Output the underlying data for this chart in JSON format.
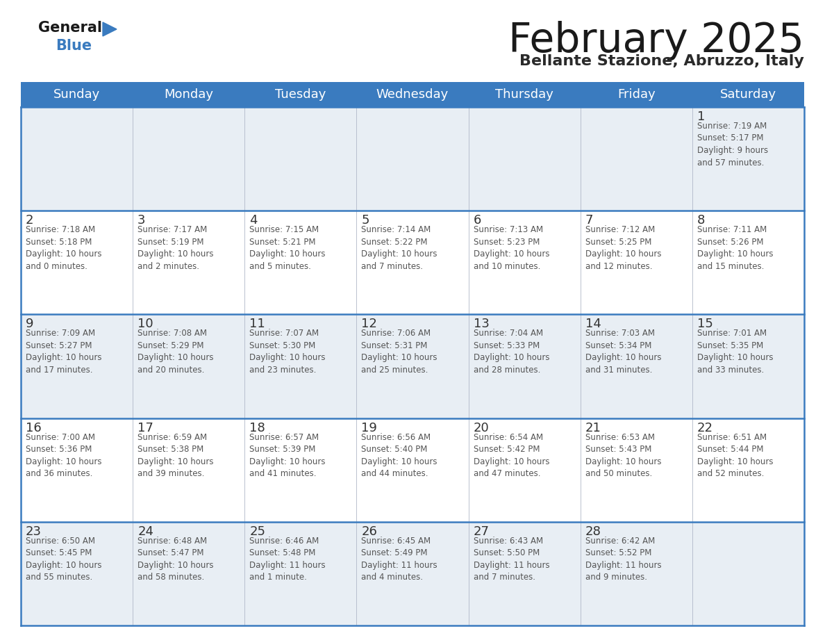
{
  "title": "February 2025",
  "subtitle": "Bellante Stazione, Abruzzo, Italy",
  "header_bg": "#3a7bbf",
  "header_text": "#ffffff",
  "day_names": [
    "Sunday",
    "Monday",
    "Tuesday",
    "Wednesday",
    "Thursday",
    "Friday",
    "Saturday"
  ],
  "row_bg_light": "#e8eef4",
  "row_bg_white": "#ffffff",
  "cell_border_color": "#3a7bbf",
  "cell_divider_color": "#b0b8c8",
  "day_number_color": "#333333",
  "info_text_color": "#555555",
  "background": "#ffffff",
  "calendar_data": [
    [
      {
        "day": "",
        "info": ""
      },
      {
        "day": "",
        "info": ""
      },
      {
        "day": "",
        "info": ""
      },
      {
        "day": "",
        "info": ""
      },
      {
        "day": "",
        "info": ""
      },
      {
        "day": "",
        "info": ""
      },
      {
        "day": "1",
        "info": "Sunrise: 7:19 AM\nSunset: 5:17 PM\nDaylight: 9 hours\nand 57 minutes."
      }
    ],
    [
      {
        "day": "2",
        "info": "Sunrise: 7:18 AM\nSunset: 5:18 PM\nDaylight: 10 hours\nand 0 minutes."
      },
      {
        "day": "3",
        "info": "Sunrise: 7:17 AM\nSunset: 5:19 PM\nDaylight: 10 hours\nand 2 minutes."
      },
      {
        "day": "4",
        "info": "Sunrise: 7:15 AM\nSunset: 5:21 PM\nDaylight: 10 hours\nand 5 minutes."
      },
      {
        "day": "5",
        "info": "Sunrise: 7:14 AM\nSunset: 5:22 PM\nDaylight: 10 hours\nand 7 minutes."
      },
      {
        "day": "6",
        "info": "Sunrise: 7:13 AM\nSunset: 5:23 PM\nDaylight: 10 hours\nand 10 minutes."
      },
      {
        "day": "7",
        "info": "Sunrise: 7:12 AM\nSunset: 5:25 PM\nDaylight: 10 hours\nand 12 minutes."
      },
      {
        "day": "8",
        "info": "Sunrise: 7:11 AM\nSunset: 5:26 PM\nDaylight: 10 hours\nand 15 minutes."
      }
    ],
    [
      {
        "day": "9",
        "info": "Sunrise: 7:09 AM\nSunset: 5:27 PM\nDaylight: 10 hours\nand 17 minutes."
      },
      {
        "day": "10",
        "info": "Sunrise: 7:08 AM\nSunset: 5:29 PM\nDaylight: 10 hours\nand 20 minutes."
      },
      {
        "day": "11",
        "info": "Sunrise: 7:07 AM\nSunset: 5:30 PM\nDaylight: 10 hours\nand 23 minutes."
      },
      {
        "day": "12",
        "info": "Sunrise: 7:06 AM\nSunset: 5:31 PM\nDaylight: 10 hours\nand 25 minutes."
      },
      {
        "day": "13",
        "info": "Sunrise: 7:04 AM\nSunset: 5:33 PM\nDaylight: 10 hours\nand 28 minutes."
      },
      {
        "day": "14",
        "info": "Sunrise: 7:03 AM\nSunset: 5:34 PM\nDaylight: 10 hours\nand 31 minutes."
      },
      {
        "day": "15",
        "info": "Sunrise: 7:01 AM\nSunset: 5:35 PM\nDaylight: 10 hours\nand 33 minutes."
      }
    ],
    [
      {
        "day": "16",
        "info": "Sunrise: 7:00 AM\nSunset: 5:36 PM\nDaylight: 10 hours\nand 36 minutes."
      },
      {
        "day": "17",
        "info": "Sunrise: 6:59 AM\nSunset: 5:38 PM\nDaylight: 10 hours\nand 39 minutes."
      },
      {
        "day": "18",
        "info": "Sunrise: 6:57 AM\nSunset: 5:39 PM\nDaylight: 10 hours\nand 41 minutes."
      },
      {
        "day": "19",
        "info": "Sunrise: 6:56 AM\nSunset: 5:40 PM\nDaylight: 10 hours\nand 44 minutes."
      },
      {
        "day": "20",
        "info": "Sunrise: 6:54 AM\nSunset: 5:42 PM\nDaylight: 10 hours\nand 47 minutes."
      },
      {
        "day": "21",
        "info": "Sunrise: 6:53 AM\nSunset: 5:43 PM\nDaylight: 10 hours\nand 50 minutes."
      },
      {
        "day": "22",
        "info": "Sunrise: 6:51 AM\nSunset: 5:44 PM\nDaylight: 10 hours\nand 52 minutes."
      }
    ],
    [
      {
        "day": "23",
        "info": "Sunrise: 6:50 AM\nSunset: 5:45 PM\nDaylight: 10 hours\nand 55 minutes."
      },
      {
        "day": "24",
        "info": "Sunrise: 6:48 AM\nSunset: 5:47 PM\nDaylight: 10 hours\nand 58 minutes."
      },
      {
        "day": "25",
        "info": "Sunrise: 6:46 AM\nSunset: 5:48 PM\nDaylight: 11 hours\nand 1 minute."
      },
      {
        "day": "26",
        "info": "Sunrise: 6:45 AM\nSunset: 5:49 PM\nDaylight: 11 hours\nand 4 minutes."
      },
      {
        "day": "27",
        "info": "Sunrise: 6:43 AM\nSunset: 5:50 PM\nDaylight: 11 hours\nand 7 minutes."
      },
      {
        "day": "28",
        "info": "Sunrise: 6:42 AM\nSunset: 5:52 PM\nDaylight: 11 hours\nand 9 minutes."
      },
      {
        "day": "",
        "info": ""
      }
    ]
  ]
}
